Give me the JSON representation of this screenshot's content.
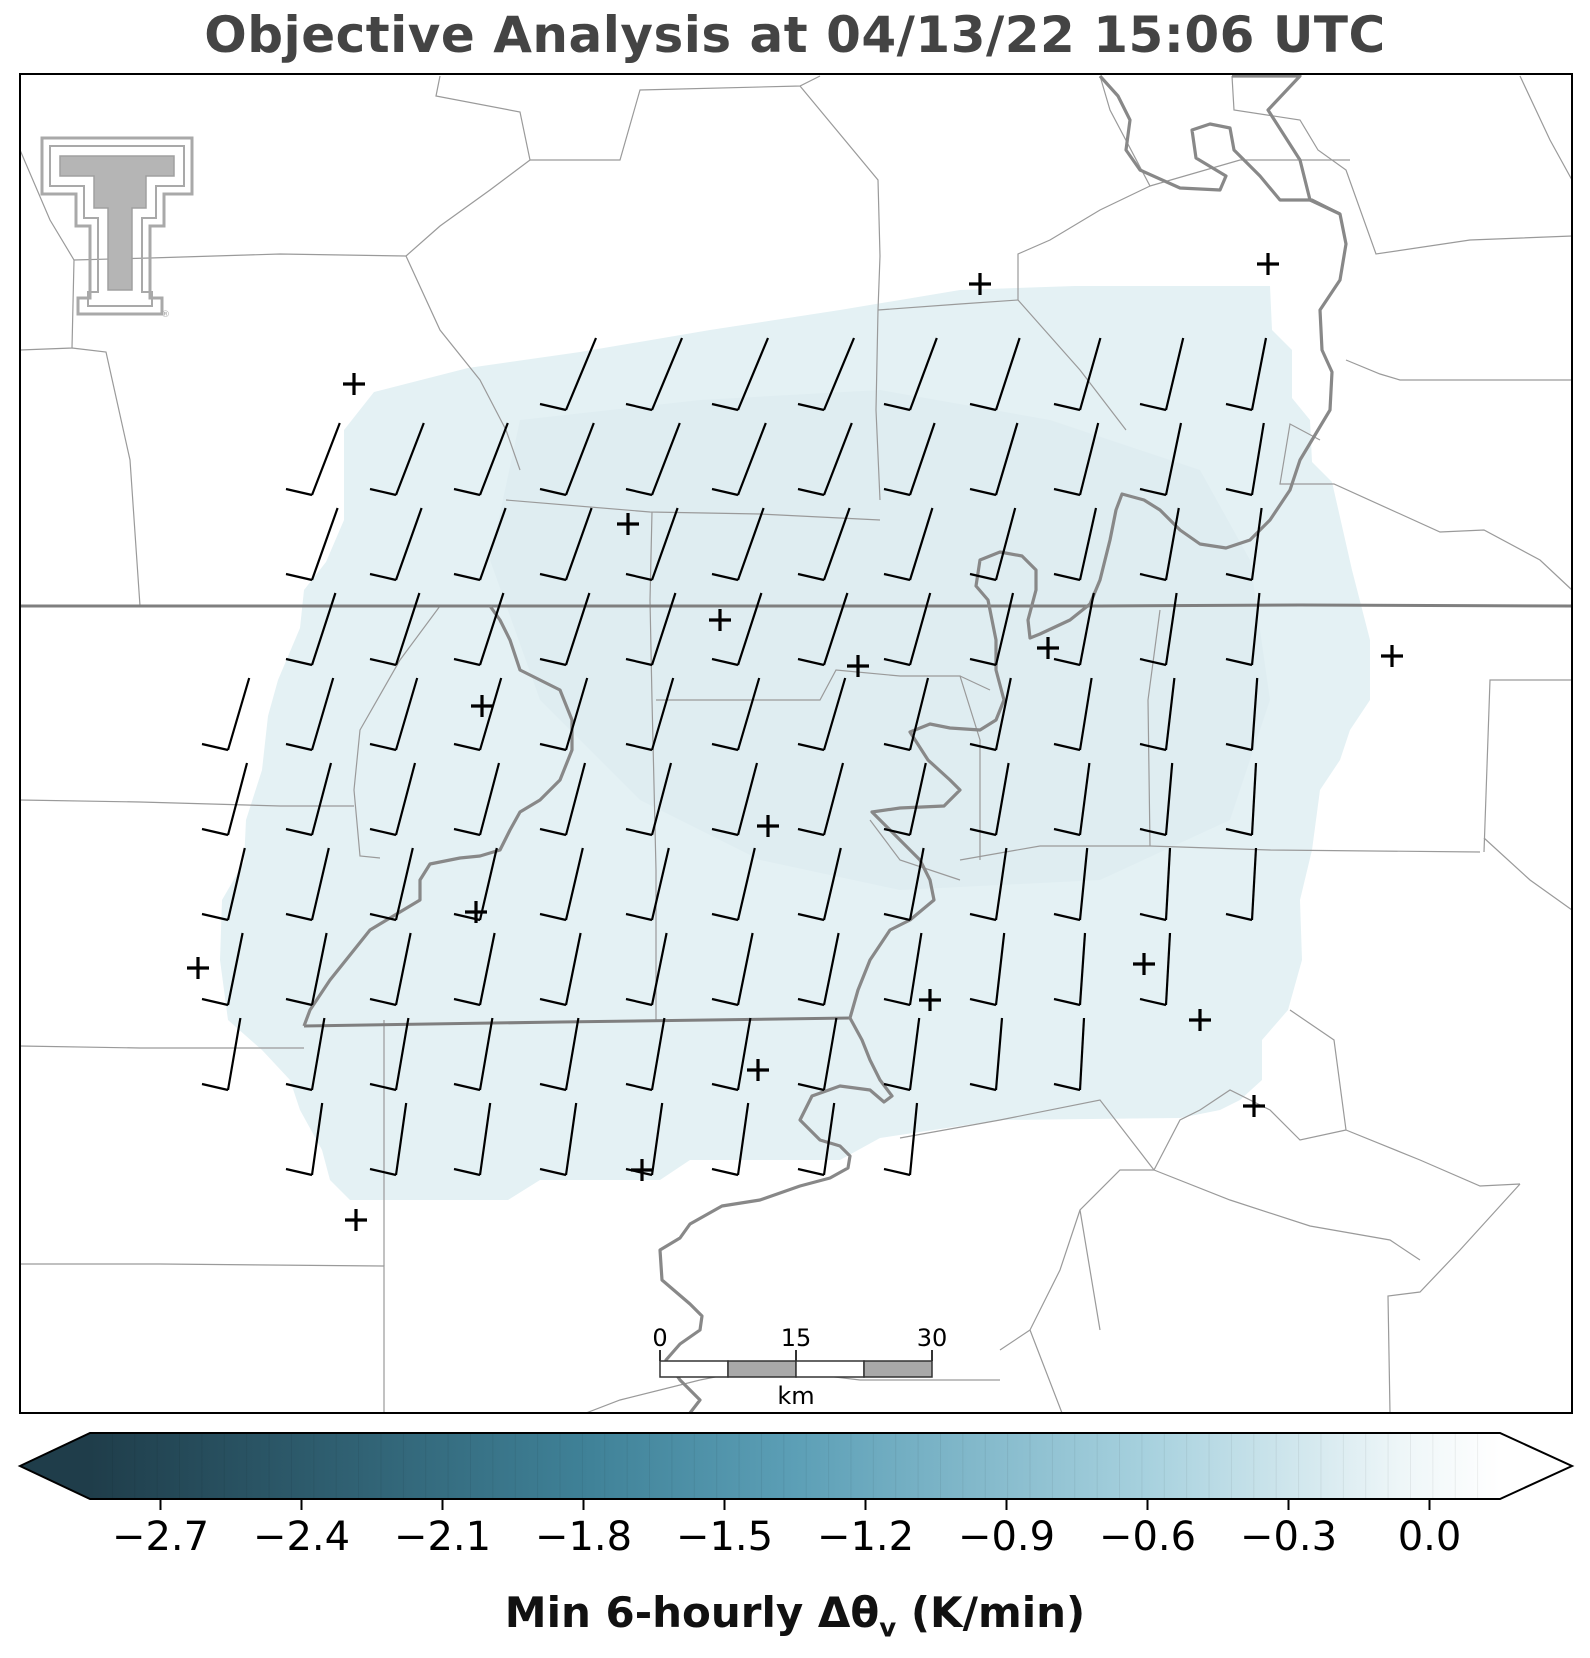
{
  "title": "Objective Analysis at 04/13/22 15:06 UTC",
  "colorbar": {
    "label_main": "Min 6-hourly Δθ",
    "label_sub": "v",
    "label_units": " (K/min)",
    "ticks": [
      "−2.7",
      "−2.4",
      "−2.1",
      "−1.8",
      "−1.5",
      "−1.2",
      "−0.9",
      "−0.6",
      "−0.3",
      "0.0"
    ],
    "range": [
      -2.85,
      0.15
    ],
    "extend": "both",
    "color_low": "#1f3d4a",
    "color_mid": "#4d97ad",
    "color_high": "#ffffff"
  },
  "scale_bar": {
    "labels": [
      "0",
      "15",
      "30"
    ],
    "unit": "km"
  },
  "field": {
    "fill_color": "#e4f1f4",
    "value_range_label": "near 0.0"
  },
  "stations": {
    "marker": "plus",
    "count": 19
  },
  "wind_barbs": {
    "count": 148,
    "style": "10-knot barb, from the south-southwest"
  },
  "logo": {
    "text": "TT",
    "color": "#a9a9a9"
  },
  "colors": {
    "state_border": "#7a7a7a",
    "county_border": "#9a9a9a",
    "river": "#808080",
    "barb": "#000000"
  }
}
